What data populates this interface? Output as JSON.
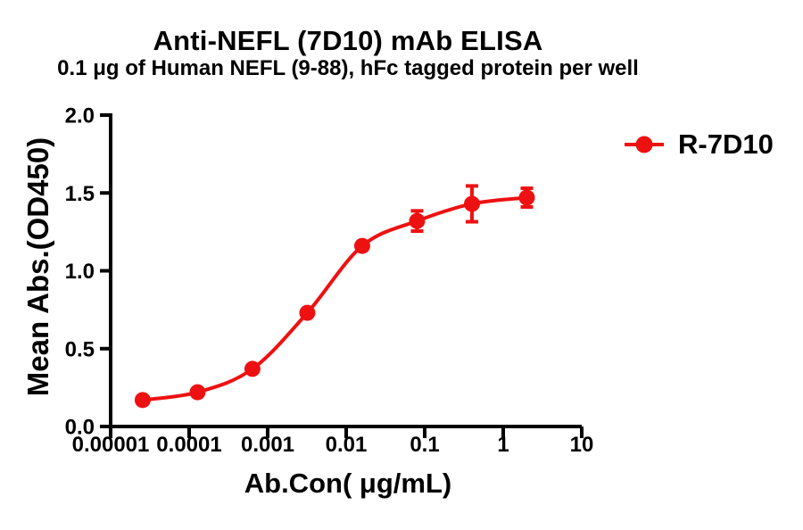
{
  "chart_data": {
    "type": "line",
    "title": "Anti-NEFL (7D10) mAb ELISA",
    "subtitle": "0.1 μg of Human NEFL (9-88), hFc tagged protein per well",
    "xlabel": "Ab.Con( μg/mL)",
    "ylabel": "Mean Abs.(OD450)",
    "x_scale": "log10",
    "xlim": [
      1e-05,
      10
    ],
    "ylim": [
      0.0,
      2.0
    ],
    "grid": false,
    "legend_position": "right",
    "x_ticks": [
      {
        "value": 1e-05,
        "label": "0.00001"
      },
      {
        "value": 0.0001,
        "label": "0.0001"
      },
      {
        "value": 0.001,
        "label": "0.001"
      },
      {
        "value": 0.01,
        "label": "0.01"
      },
      {
        "value": 0.1,
        "label": "0.1"
      },
      {
        "value": 1,
        "label": "1"
      },
      {
        "value": 10,
        "label": "10"
      }
    ],
    "y_ticks": [
      {
        "value": 0.0,
        "label": "0.0"
      },
      {
        "value": 0.5,
        "label": "0.5"
      },
      {
        "value": 1.0,
        "label": "1.0"
      },
      {
        "value": 1.5,
        "label": "1.5"
      },
      {
        "value": 2.0,
        "label": "2.0"
      }
    ],
    "series": [
      {
        "name": "R-7D10",
        "color": "#ee1111",
        "marker": "filled-circle",
        "x": [
          2.56e-05,
          0.000128,
          0.00064,
          0.0032,
          0.016,
          0.08,
          0.4,
          2
        ],
        "y": [
          0.17,
          0.22,
          0.37,
          0.73,
          1.16,
          1.32,
          1.43,
          1.47
        ],
        "yerr": [
          0,
          0,
          0,
          0,
          0,
          0.065,
          0.115,
          0.06
        ]
      }
    ]
  },
  "legend": {
    "label": "R-7D10"
  }
}
